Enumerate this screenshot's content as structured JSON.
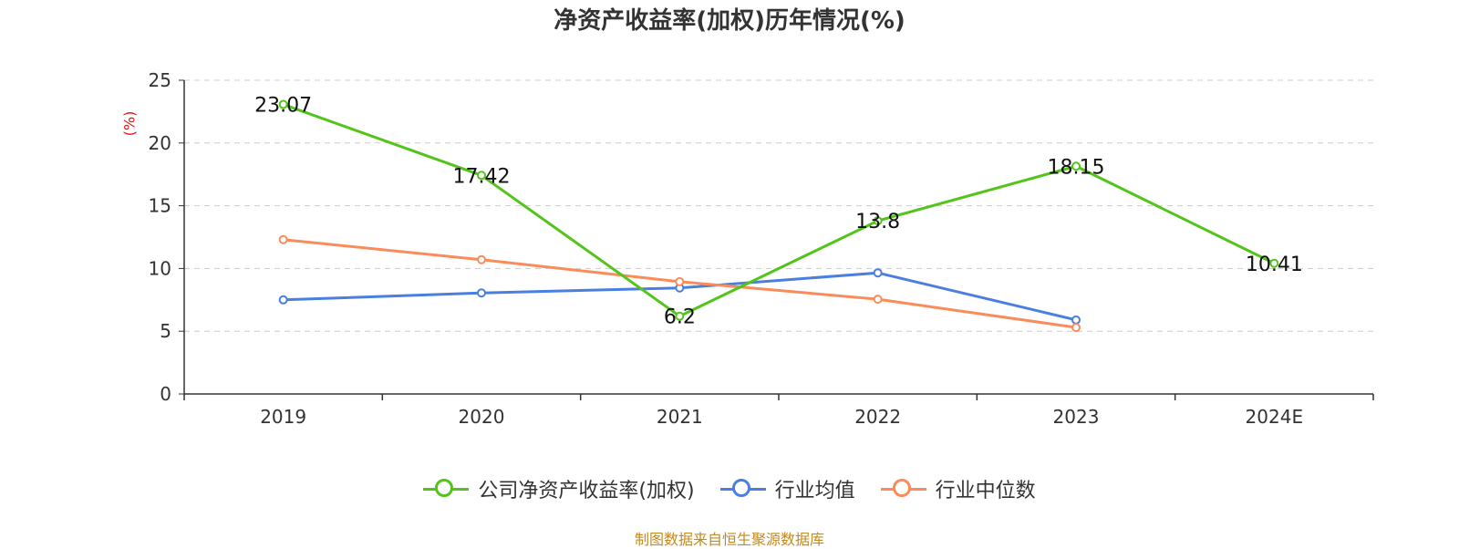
{
  "chart_data": {
    "type": "line",
    "title": "净资产收益率(加权)历年情况(%)",
    "xlabel": "",
    "ylabel": "(%)",
    "categories": [
      "2019",
      "2020",
      "2021",
      "2022",
      "2023",
      "2024E"
    ],
    "ylim": [
      0,
      25
    ],
    "yticks": [
      0,
      5,
      10,
      15,
      20,
      25
    ],
    "grid": true,
    "legend_position": "bottom",
    "series": [
      {
        "name": "公司净资产收益率(加权)",
        "color": "#52c41a",
        "values": [
          23.07,
          17.42,
          6.2,
          13.8,
          18.15,
          10.41
        ],
        "labels": [
          "23.07",
          "17.42",
          "6.2",
          "13.8",
          "18.15",
          "10.41"
        ]
      },
      {
        "name": "行业均值",
        "color": "#4a7fe0",
        "values": [
          7.5,
          8.05,
          8.45,
          9.65,
          5.9,
          null
        ]
      },
      {
        "name": "行业中位数",
        "color": "#f98c5a",
        "values": [
          12.3,
          10.7,
          8.95,
          7.55,
          5.3,
          null
        ]
      }
    ]
  },
  "footer": {
    "source": "制图数据来自恒生聚源数据库"
  }
}
